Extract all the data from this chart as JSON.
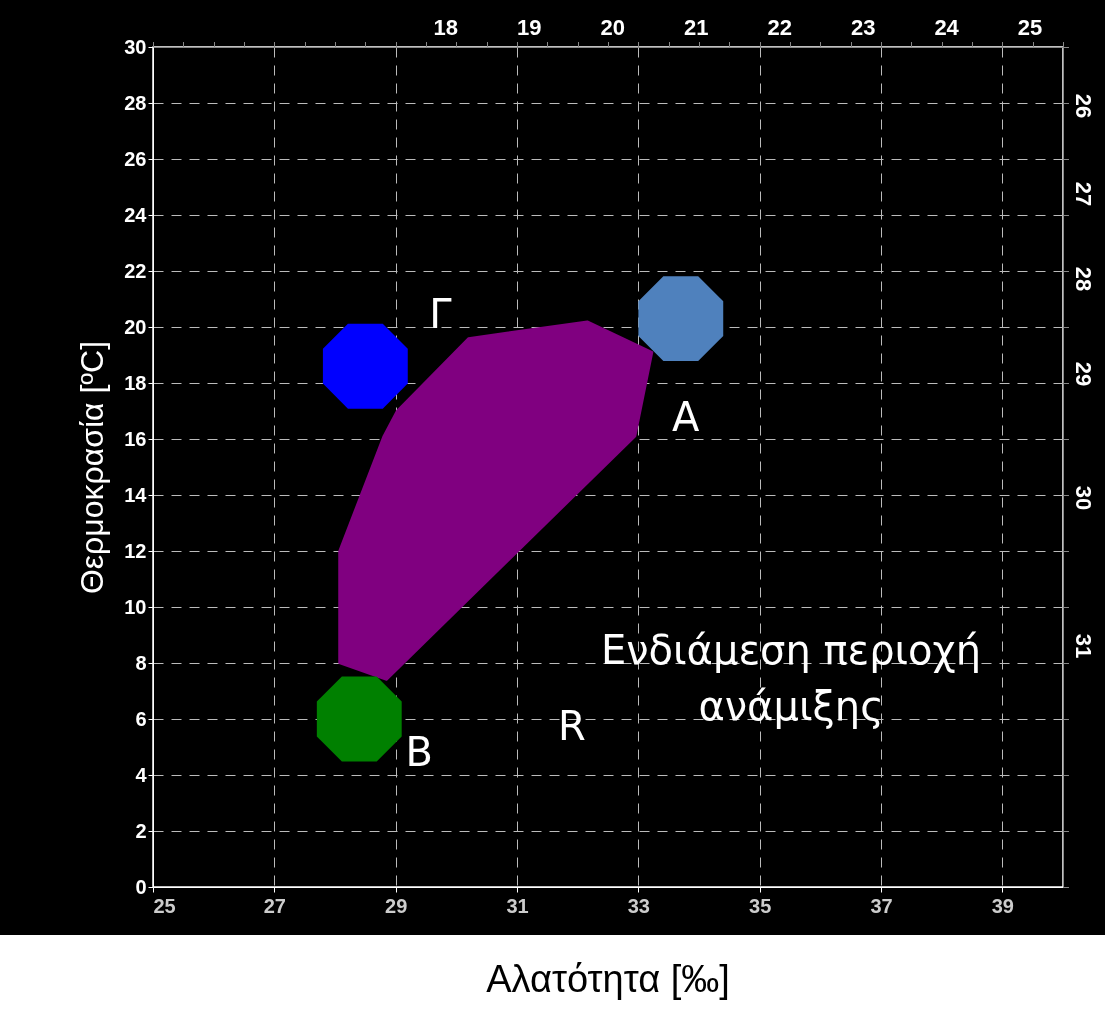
{
  "chart_data": {
    "type": "scatter",
    "xlabel": "Αλατότητα [‰]",
    "ylabel": "Θερμοκρασία [ºC]",
    "xlim": [
      25,
      40
    ],
    "ylim": [
      0,
      30
    ],
    "xticks": [
      25,
      27,
      29,
      31,
      33,
      35,
      37,
      39
    ],
    "yticks": [
      0,
      2,
      4,
      6,
      8,
      10,
      12,
      14,
      16,
      18,
      20,
      22,
      24,
      26,
      28,
      30
    ],
    "x2lim": [
      14.5,
      25.4
    ],
    "x2ticks": [
      18,
      19,
      20,
      21,
      22,
      23,
      24,
      25
    ],
    "grid": true,
    "series": [
      {
        "type": "area",
        "color": "#800080",
        "x": [
          28.07,
          28.8,
          29.02,
          30.2,
          32.16,
          33.23,
          32.95,
          28.85,
          28.07
        ],
        "values": [
          12.0,
          16.1,
          17.0,
          19.6,
          20.2,
          19.1,
          16.1,
          7.4,
          8.0
        ]
      },
      {
        "name": "Γ",
        "color": "#0000ff",
        "x": [
          28.5
        ],
        "values": [
          18.6
        ]
      },
      {
        "name": "A",
        "color": "#4f81bd",
        "x": [
          33.7
        ],
        "values": [
          20.3
        ]
      },
      {
        "name": "B",
        "color": "#008000",
        "x": [
          28.4
        ],
        "values": [
          6.0
        ]
      }
    ],
    "annotations": [
      "R",
      "Ενδιάμεση περιοχή ανάμιξης",
      "26",
      "27",
      "28",
      "29",
      "30",
      "31"
    ]
  }
}
